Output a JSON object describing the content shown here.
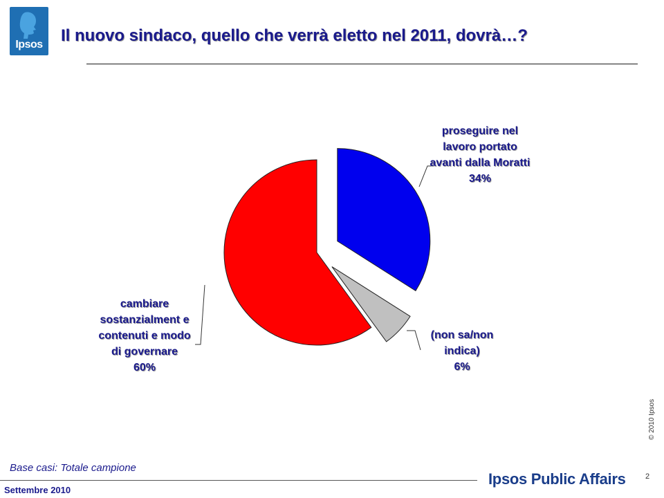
{
  "brand": {
    "logo_text": "Ipsos",
    "footer_brand": "Ipsos Public Affairs",
    "copyright": "© 2010 Ipsos"
  },
  "title": "Il nuovo sindaco, quello che verrà eletto nel 2011, dovrà…?",
  "base_note": "Base casi: Totale campione",
  "footer": {
    "date": "Settembre 2010",
    "page": "2"
  },
  "chart_data": {
    "type": "pie",
    "slices": [
      {
        "label": "proseguire nel lavoro portato avanti dalla Moratti",
        "value": 34,
        "value_label": "34%",
        "color": "#0000ee"
      },
      {
        "label": "(non sa/non indica)",
        "value": 6,
        "value_label": "6%",
        "color": "#c0c0c0"
      },
      {
        "label": "cambiare sostanzialment e contenuti e modo di governare",
        "value": 60,
        "value_label": "60%",
        "color": "#ff0000"
      }
    ]
  }
}
